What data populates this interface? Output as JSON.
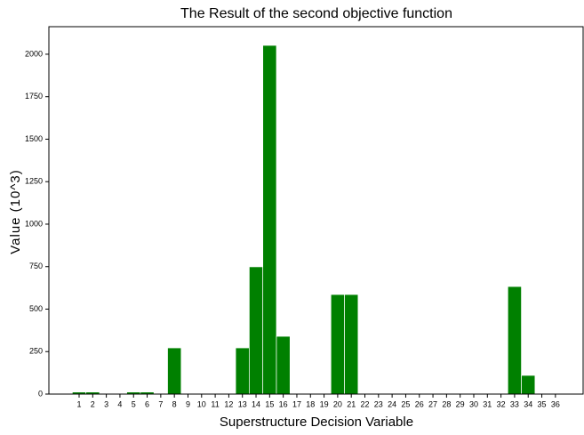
{
  "chart_data": {
    "type": "bar",
    "title": "The Result of the second objective function",
    "xlabel": "Superstructure Decision Variable",
    "ylabel": "Value (10^3)",
    "categories": [
      "1",
      "2",
      "3",
      "4",
      "5",
      "6",
      "7",
      "8",
      "9",
      "10",
      "11",
      "12",
      "13",
      "14",
      "15",
      "16",
      "17",
      "18",
      "19",
      "20",
      "21",
      "22",
      "23",
      "24",
      "25",
      "26",
      "27",
      "28",
      "29",
      "30",
      "31",
      "32",
      "33",
      "34",
      "35",
      "36"
    ],
    "values": [
      12,
      12,
      0,
      0,
      12,
      12,
      0,
      272,
      0,
      0,
      0,
      0,
      272,
      749,
      2052,
      340,
      0,
      0,
      0,
      586,
      586,
      0,
      0,
      0,
      0,
      0,
      0,
      0,
      0,
      0,
      0,
      0,
      633,
      110,
      0,
      0
    ],
    "color": "#008000",
    "ylim": [
      0,
      2162
    ],
    "yticks": [
      0,
      250,
      500,
      750,
      1000,
      1250,
      1500,
      1750,
      2000
    ],
    "grid": false
  }
}
